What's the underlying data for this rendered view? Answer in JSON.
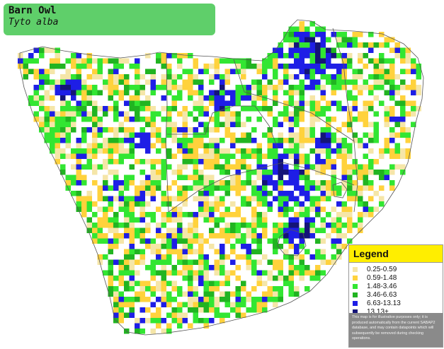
{
  "species": {
    "common_name": "Barn Owl",
    "scientific_name": "Tyto alba"
  },
  "legend": {
    "title": "Legend",
    "items": [
      {
        "label": "0.25-0.59",
        "color": "#f5e6a8"
      },
      {
        "label": "0.59-1.48",
        "color": "#ffd23c"
      },
      {
        "label": "1.48-3.46",
        "color": "#32e632"
      },
      {
        "label": "3.46-6.63",
        "color": "#21b421"
      },
      {
        "label": "6.63-13.13",
        "color": "#1e1ee6"
      },
      {
        "label": "13.13+",
        "color": "#141478"
      }
    ],
    "disclaimer": "This map is for illustrative purposes only; it is produced automatically from the current SABAP2 database, and may contain datapoints which will subsequently be removed during checking operations."
  },
  "map": {
    "land_color": "#ffffff",
    "border_color": "#555555",
    "seed": 7
  }
}
